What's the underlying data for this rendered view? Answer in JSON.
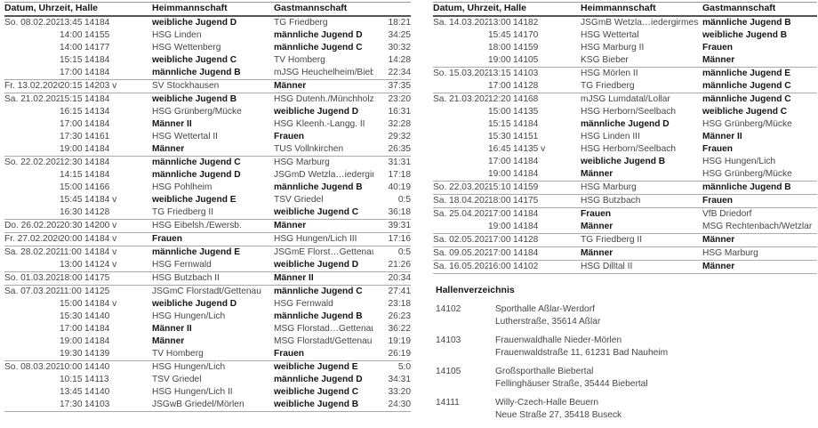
{
  "left_table": {
    "headers": [
      "Datum, Uhrzeit, Halle",
      "Heimmannschaft",
      "Gastmannschaft"
    ],
    "groups": [
      {
        "date": "So. 08.02.2026",
        "rows": [
          {
            "time": "13:45",
            "hall": "14184",
            "home": "weibliche Jugend D",
            "home_bold": true,
            "guest": "TG Friedberg",
            "guest_bold": false,
            "score": "18:21"
          },
          {
            "time": "14:00",
            "hall": "14155",
            "home": "HSG Linden",
            "home_bold": false,
            "guest": "männliche Jugend D",
            "guest_bold": true,
            "score": "34:25"
          },
          {
            "time": "14:00",
            "hall": "14177",
            "home": "HSG Wettenberg",
            "home_bold": false,
            "guest": "männliche Jugend C",
            "guest_bold": true,
            "score": "30:32"
          },
          {
            "time": "15:15",
            "hall": "14184",
            "home": "weibliche Jugend C",
            "home_bold": true,
            "guest": "TV Homberg",
            "guest_bold": false,
            "score": "14:28"
          },
          {
            "time": "17:00",
            "hall": "14184",
            "home": "männliche Jugend B",
            "home_bold": true,
            "guest": "mJSG Heuchelheim/Bieber",
            "guest_bold": false,
            "score": "22:34"
          }
        ]
      },
      {
        "date": "Fr. 13.02.2026",
        "rows": [
          {
            "time": "20:15",
            "hall": "14203 v",
            "home": "SV Stockhausen",
            "home_bold": false,
            "guest": "Männer",
            "guest_bold": true,
            "score": "37:35"
          }
        ]
      },
      {
        "date": "Sa. 21.02.2026",
        "rows": [
          {
            "time": "15:15",
            "hall": "14184",
            "home": "weibliche Jugend B",
            "home_bold": true,
            "guest": "HSG Dutenh./Münchholzh.",
            "guest_bold": false,
            "score": "23:20"
          },
          {
            "time": "16:15",
            "hall": "14134",
            "home": "HSG Grünberg/Mücke",
            "home_bold": false,
            "guest": "weibliche Jugend D",
            "guest_bold": true,
            "score": "16:31"
          },
          {
            "time": "17:00",
            "hall": "14184",
            "home": "Männer II",
            "home_bold": true,
            "guest": "HSG Kleenh.-Langg. II",
            "guest_bold": false,
            "score": "32:28"
          },
          {
            "time": "17:30",
            "hall": "14161",
            "home": "HSG Wettertal II",
            "home_bold": false,
            "guest": "Frauen",
            "guest_bold": true,
            "score": "29:32"
          },
          {
            "time": "19:00",
            "hall": "14184",
            "home": "Männer",
            "home_bold": true,
            "guest": "TUS Vollnkirchen",
            "guest_bold": false,
            "score": "26:35"
          }
        ]
      },
      {
        "date": "So. 22.02.2026",
        "rows": [
          {
            "time": "12:30",
            "hall": "14184",
            "home": "männliche Jugend C",
            "home_bold": true,
            "guest": "HSG Marburg",
            "guest_bold": false,
            "score": "31:31"
          },
          {
            "time": "14:15",
            "hall": "14184",
            "home": "männliche Jugend D",
            "home_bold": true,
            "guest": "JSGmD Wetzla…iedergirmes",
            "guest_bold": false,
            "score": "17:18"
          },
          {
            "time": "15:00",
            "hall": "14166",
            "home": "HSG Pohlheim",
            "home_bold": false,
            "guest": "männliche Jugend B",
            "guest_bold": true,
            "score": "40:19"
          },
          {
            "time": "15:45",
            "hall": "14184 v",
            "home": "weibliche Jugend E",
            "home_bold": true,
            "guest": "TSV Griedel",
            "guest_bold": false,
            "score": "0:5"
          },
          {
            "time": "16:30",
            "hall": "14128",
            "home": "TG Friedberg II",
            "home_bold": false,
            "guest": "weibliche Jugend C",
            "guest_bold": true,
            "score": "36:18"
          }
        ]
      },
      {
        "date": "Do. 26.02.2026",
        "rows": [
          {
            "time": "20:30",
            "hall": "14200 v",
            "home": "HSG Eibelsh./Ewersb.",
            "home_bold": false,
            "guest": "Männer",
            "guest_bold": true,
            "score": "39:31"
          }
        ]
      },
      {
        "date": "Fr. 27.02.2026",
        "rows": [
          {
            "time": "20:00",
            "hall": "14184 v",
            "home": "Frauen",
            "home_bold": true,
            "guest": "HSG Hungen/Lich III",
            "guest_bold": false,
            "score": "17:16"
          }
        ]
      },
      {
        "date": "Sa. 28.02.2026",
        "rows": [
          {
            "time": "11:00",
            "hall": "14184 v",
            "home": "männliche Jugend E",
            "home_bold": true,
            "guest": "JSGmE Florst…Gettenau II",
            "guest_bold": false,
            "score": "0:5"
          },
          {
            "time": "13:00",
            "hall": "14124 v",
            "home": "HSG Fernwald",
            "home_bold": false,
            "guest": "weibliche Jugend D",
            "guest_bold": true,
            "score": "21:26"
          }
        ]
      },
      {
        "date": "So. 01.03.2026",
        "rows": [
          {
            "time": "18:00",
            "hall": "14175",
            "home": "HSG Butzbach II",
            "home_bold": false,
            "guest": "Männer II",
            "guest_bold": true,
            "score": "20:34"
          }
        ]
      },
      {
        "date": "Sa. 07.03.2026",
        "rows": [
          {
            "time": "11:00",
            "hall": "14125",
            "home": "JSGmC Florstadt/Gettenau",
            "home_bold": false,
            "guest": "männliche Jugend C",
            "guest_bold": true,
            "score": "27:41"
          },
          {
            "time": "15:00",
            "hall": "14184 v",
            "home": "weibliche Jugend D",
            "home_bold": true,
            "guest": "HSG Fernwald",
            "guest_bold": false,
            "score": "23:18"
          },
          {
            "time": "15:30",
            "hall": "14140",
            "home": "HSG Hungen/Lich",
            "home_bold": false,
            "guest": "männliche Jugend B",
            "guest_bold": true,
            "score": "26:23"
          },
          {
            "time": "17:00",
            "hall": "14184",
            "home": "Männer II",
            "home_bold": true,
            "guest": "MSG Florstad…Gettenau II",
            "guest_bold": false,
            "score": "36:22"
          },
          {
            "time": "19:00",
            "hall": "14184",
            "home": "Männer",
            "home_bold": true,
            "guest": "MSG Florstadt/Gettenau",
            "guest_bold": false,
            "score": "19:19"
          },
          {
            "time": "19:30",
            "hall": "14139",
            "home": "TV Homberg",
            "home_bold": false,
            "guest": "Frauen",
            "guest_bold": true,
            "score": "26:19"
          }
        ]
      },
      {
        "date": "So. 08.03.2026",
        "rows": [
          {
            "time": "10:00",
            "hall": "14140",
            "home": "HSG Hungen/Lich",
            "home_bold": false,
            "guest": "weibliche Jugend E",
            "guest_bold": true,
            "score": "5:0"
          },
          {
            "time": "10:15",
            "hall": "14113",
            "home": "TSV Griedel",
            "home_bold": false,
            "guest": "männliche Jugend D",
            "guest_bold": true,
            "score": "34:31"
          },
          {
            "time": "13:45",
            "hall": "14140",
            "home": "HSG Hungen/Lich II",
            "home_bold": false,
            "guest": "weibliche Jugend C",
            "guest_bold": true,
            "score": "33:20"
          },
          {
            "time": "17:30",
            "hall": "14103",
            "home": "JSGwB Griedel/Mörlen",
            "home_bold": false,
            "guest": "weibliche Jugend B",
            "guest_bold": true,
            "score": "24:30"
          }
        ]
      }
    ]
  },
  "right_table": {
    "headers": [
      "Datum, Uhrzeit, Halle",
      "Heimmannschaft",
      "Gastmannschaft"
    ],
    "groups": [
      {
        "date": "Sa. 14.03.2026",
        "rows": [
          {
            "time": "13:00",
            "hall": "14182",
            "home": "JSGmB Wetzla…iedergirmes",
            "home_bold": false,
            "guest": "männliche Jugend B",
            "guest_bold": true
          },
          {
            "time": "15:45",
            "hall": "14170",
            "home": "HSG Wettertal",
            "home_bold": false,
            "guest": "weibliche Jugend B",
            "guest_bold": true
          },
          {
            "time": "18:00",
            "hall": "14159",
            "home": "HSG Marburg II",
            "home_bold": false,
            "guest": "Frauen",
            "guest_bold": true
          },
          {
            "time": "19:00",
            "hall": "14105",
            "home": "KSG Bieber",
            "home_bold": false,
            "guest": "Männer",
            "guest_bold": true
          }
        ]
      },
      {
        "date": "So. 15.03.2026",
        "rows": [
          {
            "time": "13:15",
            "hall": "14103",
            "home": "HSG Mörlen II",
            "home_bold": false,
            "guest": "männliche Jugend E",
            "guest_bold": true
          },
          {
            "time": "17:00",
            "hall": "14128",
            "home": "TG Friedberg",
            "home_bold": false,
            "guest": "männliche Jugend C",
            "guest_bold": true
          }
        ]
      },
      {
        "date": "Sa. 21.03.2026",
        "rows": [
          {
            "time": "12:20",
            "hall": "14168",
            "home": "mJSG Lumdatal/Lollar",
            "home_bold": false,
            "guest": "männliche Jugend C",
            "guest_bold": true
          },
          {
            "time": "15:00",
            "hall": "14135",
            "home": "HSG Herborn/Seelbach",
            "home_bold": false,
            "guest": "weibliche Jugend C",
            "guest_bold": true
          },
          {
            "time": "15:15",
            "hall": "14184",
            "home": "männliche Jugend D",
            "home_bold": true,
            "guest": "HSG Grünberg/Mücke",
            "guest_bold": false
          },
          {
            "time": "15:30",
            "hall": "14151",
            "home": "HSG Linden III",
            "home_bold": false,
            "guest": "Männer II",
            "guest_bold": true
          },
          {
            "time": "16:45",
            "hall": "14135 v",
            "home": "HSG Herborn/Seelbach",
            "home_bold": false,
            "guest": "Frauen",
            "guest_bold": true
          },
          {
            "time": "17:00",
            "hall": "14184",
            "home": "weibliche Jugend B",
            "home_bold": true,
            "guest": "HSG Hungen/Lich",
            "guest_bold": false
          },
          {
            "time": "19:00",
            "hall": "14184",
            "home": "Männer",
            "home_bold": true,
            "guest": "HSG Grünberg/Mücke",
            "guest_bold": false
          }
        ]
      },
      {
        "date": "So. 22.03.2026",
        "rows": [
          {
            "time": "15:10",
            "hall": "14159",
            "home": "HSG Marburg",
            "home_bold": false,
            "guest": "männliche Jugend B",
            "guest_bold": true
          }
        ]
      },
      {
        "date": "Sa. 18.04.2026",
        "rows": [
          {
            "time": "18:00",
            "hall": "14175",
            "home": "HSG Butzbach",
            "home_bold": false,
            "guest": "Frauen",
            "guest_bold": true
          }
        ]
      },
      {
        "date": "Sa. 25.04.2026",
        "rows": [
          {
            "time": "17:00",
            "hall": "14184",
            "home": "Frauen",
            "home_bold": true,
            "guest": "VfB Driedorf",
            "guest_bold": false
          },
          {
            "time": "19:00",
            "hall": "14184",
            "home": "Männer",
            "home_bold": true,
            "guest": "MSG Rechtenbach/Wetzlar",
            "guest_bold": false
          }
        ]
      },
      {
        "date": "Sa. 02.05.2026",
        "rows": [
          {
            "time": "17:00",
            "hall": "14128",
            "home": "TG Friedberg II",
            "home_bold": false,
            "guest": "Männer",
            "guest_bold": true
          }
        ]
      },
      {
        "date": "Sa. 09.05.2026",
        "rows": [
          {
            "time": "17:00",
            "hall": "14184",
            "home": "Männer",
            "home_bold": true,
            "guest": "HSG Marburg",
            "guest_bold": false
          }
        ]
      },
      {
        "date": "Sa. 16.05.2026",
        "rows": [
          {
            "time": "16:00",
            "hall": "14102",
            "home": "HSG Dilltal II",
            "home_bold": false,
            "guest": "Männer",
            "guest_bold": true
          }
        ]
      }
    ]
  },
  "hall_directory": {
    "title": "Hallenverzeichnis",
    "entries": [
      {
        "code": "14102",
        "name": "Sporthalle Aßlar-Werdorf",
        "address": "Lutherstraße, 35614 Aßlar"
      },
      {
        "code": "14103",
        "name": "Frauenwaldhalle Nieder-Mörlen",
        "address": "Frauenwaldstraße 11, 61231 Bad Nauheim"
      },
      {
        "code": "14105",
        "name": "Großsporthalle Biebertal",
        "address": "Fellinghäuser Straße, 35444 Biebertal"
      },
      {
        "code": "14111",
        "name": "Willy-Czech-Halle Beuern",
        "address": "Neue Straße 27, 35418 Buseck"
      }
    ]
  }
}
